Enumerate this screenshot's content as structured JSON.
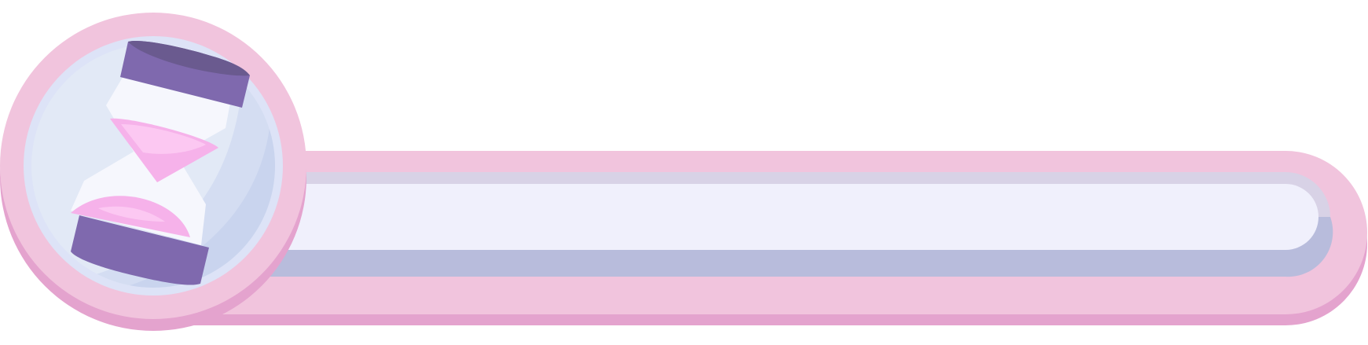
{
  "timer_bar": {
    "icon": "hourglass-icon",
    "progress": 0,
    "colors": {
      "frame_pink": "#f1c4dd",
      "frame_shadow": "#e4a3ce",
      "track_fill": "#f0f0fc",
      "track_top_edge": "#d8d2e6",
      "track_bottom_edge": "#b8bcdc",
      "dial_face": "#e2e9f6",
      "dial_ring": "#dde3f7",
      "dial_shade": "#c9d4ee",
      "hourglass_cap": "#7f69ae",
      "hourglass_cap_dark": "#6a5a8f",
      "hourglass_glass": "#f6f7fd",
      "sand": "#f6b2ea",
      "sand_light": "#fcc8f2"
    }
  }
}
